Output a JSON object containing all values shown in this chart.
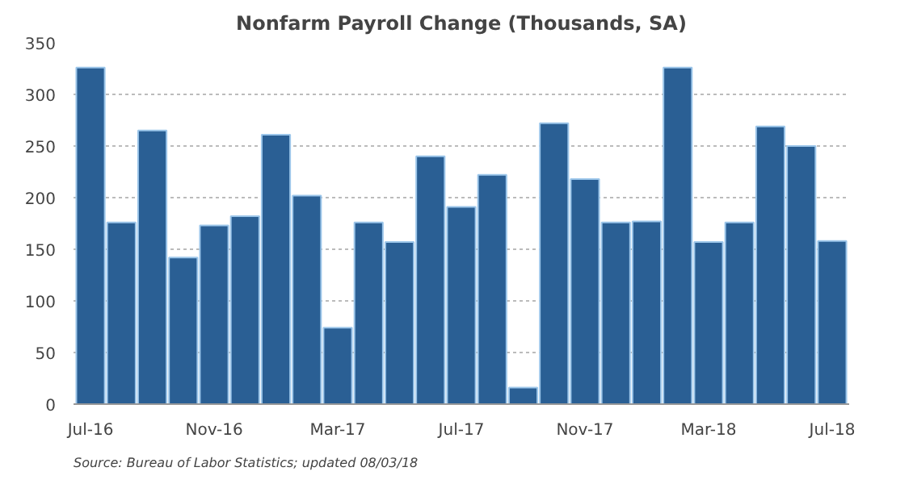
{
  "chart_data": {
    "type": "bar",
    "title": "Nonfarm Payroll Change (Thousands, SA)",
    "categories": [
      "Jul-16",
      null,
      null,
      null,
      "Nov-16",
      null,
      null,
      null,
      "Mar-17",
      null,
      null,
      null,
      "Jul-17",
      null,
      null,
      null,
      "Nov-17",
      null,
      null,
      null,
      "Mar-18",
      null,
      null,
      null,
      "Jul-18"
    ],
    "values": [
      326,
      176,
      265,
      142,
      173,
      182,
      261,
      202,
      74,
      176,
      157,
      240,
      191,
      222,
      16,
      272,
      218,
      176,
      177,
      326,
      157,
      176,
      269,
      250,
      158
    ],
    "color": "#2a5f94",
    "ylim": [
      0,
      350
    ],
    "yticks": [
      0,
      50,
      100,
      150,
      200,
      250,
      300,
      350
    ],
    "grid": "y",
    "annotations": [
      "Source: Bureau of Labor Statistics; updated 08/03/18"
    ]
  }
}
